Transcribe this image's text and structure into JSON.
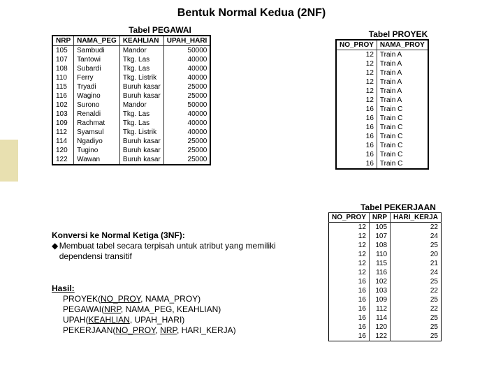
{
  "title": "Bentuk Normal Kedua (2NF)",
  "accent_color": "#e8e0b0",
  "pegawai": {
    "caption": "Tabel PEGAWAI",
    "columns": [
      "NRP",
      "NAMA_PEG",
      "KEAHLIAN",
      "UPAH_HARI"
    ],
    "rows": [
      [
        "105",
        "Sambudi",
        "Mandor",
        "50000"
      ],
      [
        "107",
        "Tantowi",
        "Tkg. Las",
        "40000"
      ],
      [
        "108",
        "Subardi",
        "Tkg. Las",
        "40000"
      ],
      [
        "110",
        "Ferry",
        "Tkg. Listrik",
        "40000"
      ],
      [
        "115",
        "Tryadi",
        "Buruh kasar",
        "25000"
      ],
      [
        "116",
        "Wagino",
        "Buruh kasar",
        "25000"
      ],
      [
        "102",
        "Surono",
        "Mandor",
        "50000"
      ],
      [
        "103",
        "Renaldi",
        "Tkg. Las",
        "40000"
      ],
      [
        "109",
        "Rachmat",
        "Tkg. Las",
        "40000"
      ],
      [
        "112",
        "Syamsul",
        "Tkg. Listrik",
        "40000"
      ],
      [
        "114",
        "Ngadiyo",
        "Buruh kasar",
        "25000"
      ],
      [
        "120",
        "Tugino",
        "Buruh kasar",
        "25000"
      ],
      [
        "122",
        "Wawan",
        "Buruh kasar",
        "25000"
      ]
    ]
  },
  "proyek": {
    "caption": "Tabel PROYEK",
    "columns": [
      "NO_PROY",
      "NAMA_PROY"
    ],
    "rows": [
      [
        "12",
        "Train A"
      ],
      [
        "12",
        "Train A"
      ],
      [
        "12",
        "Train A"
      ],
      [
        "12",
        "Train A"
      ],
      [
        "12",
        "Train A"
      ],
      [
        "12",
        "Train A"
      ],
      [
        "16",
        "Train C"
      ],
      [
        "16",
        "Train C"
      ],
      [
        "16",
        "Train C"
      ],
      [
        "16",
        "Train C"
      ],
      [
        "16",
        "Train C"
      ],
      [
        "16",
        "Train C"
      ],
      [
        "16",
        "Train C"
      ]
    ]
  },
  "pekerjaan": {
    "caption": "Tabel PEKERJAAN",
    "columns": [
      "NO_PROY",
      "NRP",
      "HARI_KERJA"
    ],
    "rows": [
      [
        "12",
        "105",
        "22"
      ],
      [
        "12",
        "107",
        "24"
      ],
      [
        "12",
        "108",
        "25"
      ],
      [
        "12",
        "110",
        "20"
      ],
      [
        "12",
        "115",
        "21"
      ],
      [
        "12",
        "116",
        "24"
      ],
      [
        "16",
        "102",
        "25"
      ],
      [
        "16",
        "103",
        "22"
      ],
      [
        "16",
        "109",
        "25"
      ],
      [
        "16",
        "112",
        "22"
      ],
      [
        "16",
        "114",
        "25"
      ],
      [
        "16",
        "120",
        "25"
      ],
      [
        "16",
        "122",
        "25"
      ]
    ]
  },
  "conv": {
    "title": "Konversi ke Normal Ketiga (3NF):",
    "bullet": "Membuat tabel secara terpisah untuk atribut yang memiliki dependensi transitif"
  },
  "hasil": {
    "title": "Hasil:",
    "l1a": "PROYEK(",
    "l1b": "NO_PROY",
    "l1c": ", NAMA_PROY)",
    "l2a": "PEGAWAI(",
    "l2b": "NRP",
    "l2c": ", NAMA_PEG, KEAHLIAN)",
    "l3a": "UPAH(",
    "l3b": "KEAHLIAN",
    "l3c": ", UPAH_HARI)",
    "l4a": "PEKERJAAN(",
    "l4b": "NO_PROY",
    "l4c": ", ",
    "l4d": "NRP",
    "l4e": ", HARI_KERJA)"
  }
}
